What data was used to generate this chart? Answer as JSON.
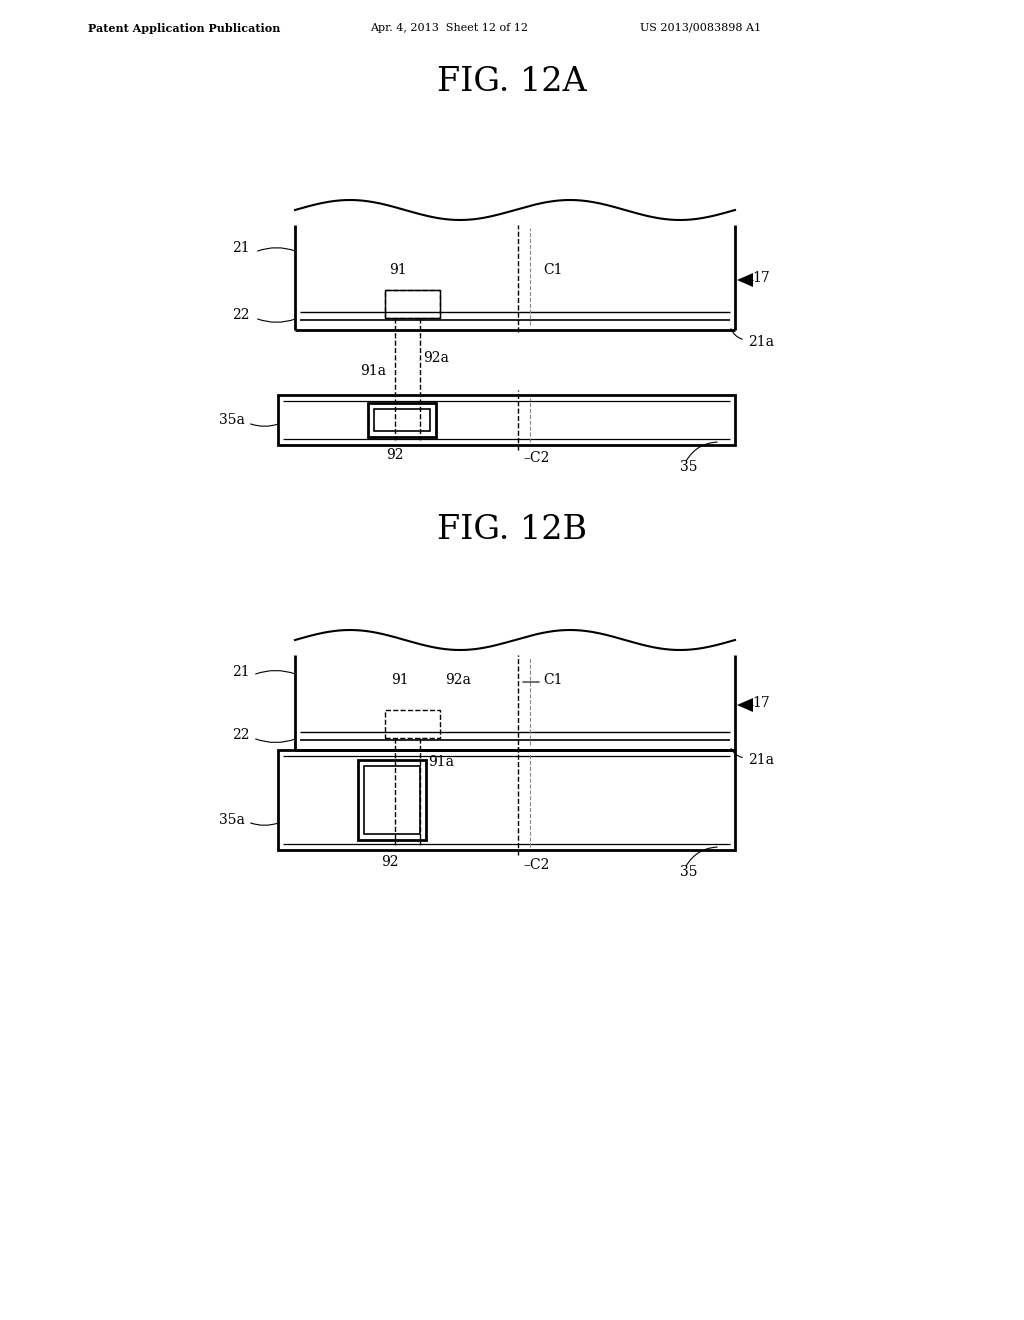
{
  "bg_color": "#ffffff",
  "line_color": "#000000",
  "header_left": "Patent Application Publication",
  "header_mid": "Apr. 4, 2013  Sheet 12 of 12",
  "header_right": "US 2013/0083898 A1",
  "fig12a_title": "FIG. 12A",
  "fig12b_title": "FIG. 12B",
  "wave_amplitude": 10,
  "wave_cycles": 2.0
}
